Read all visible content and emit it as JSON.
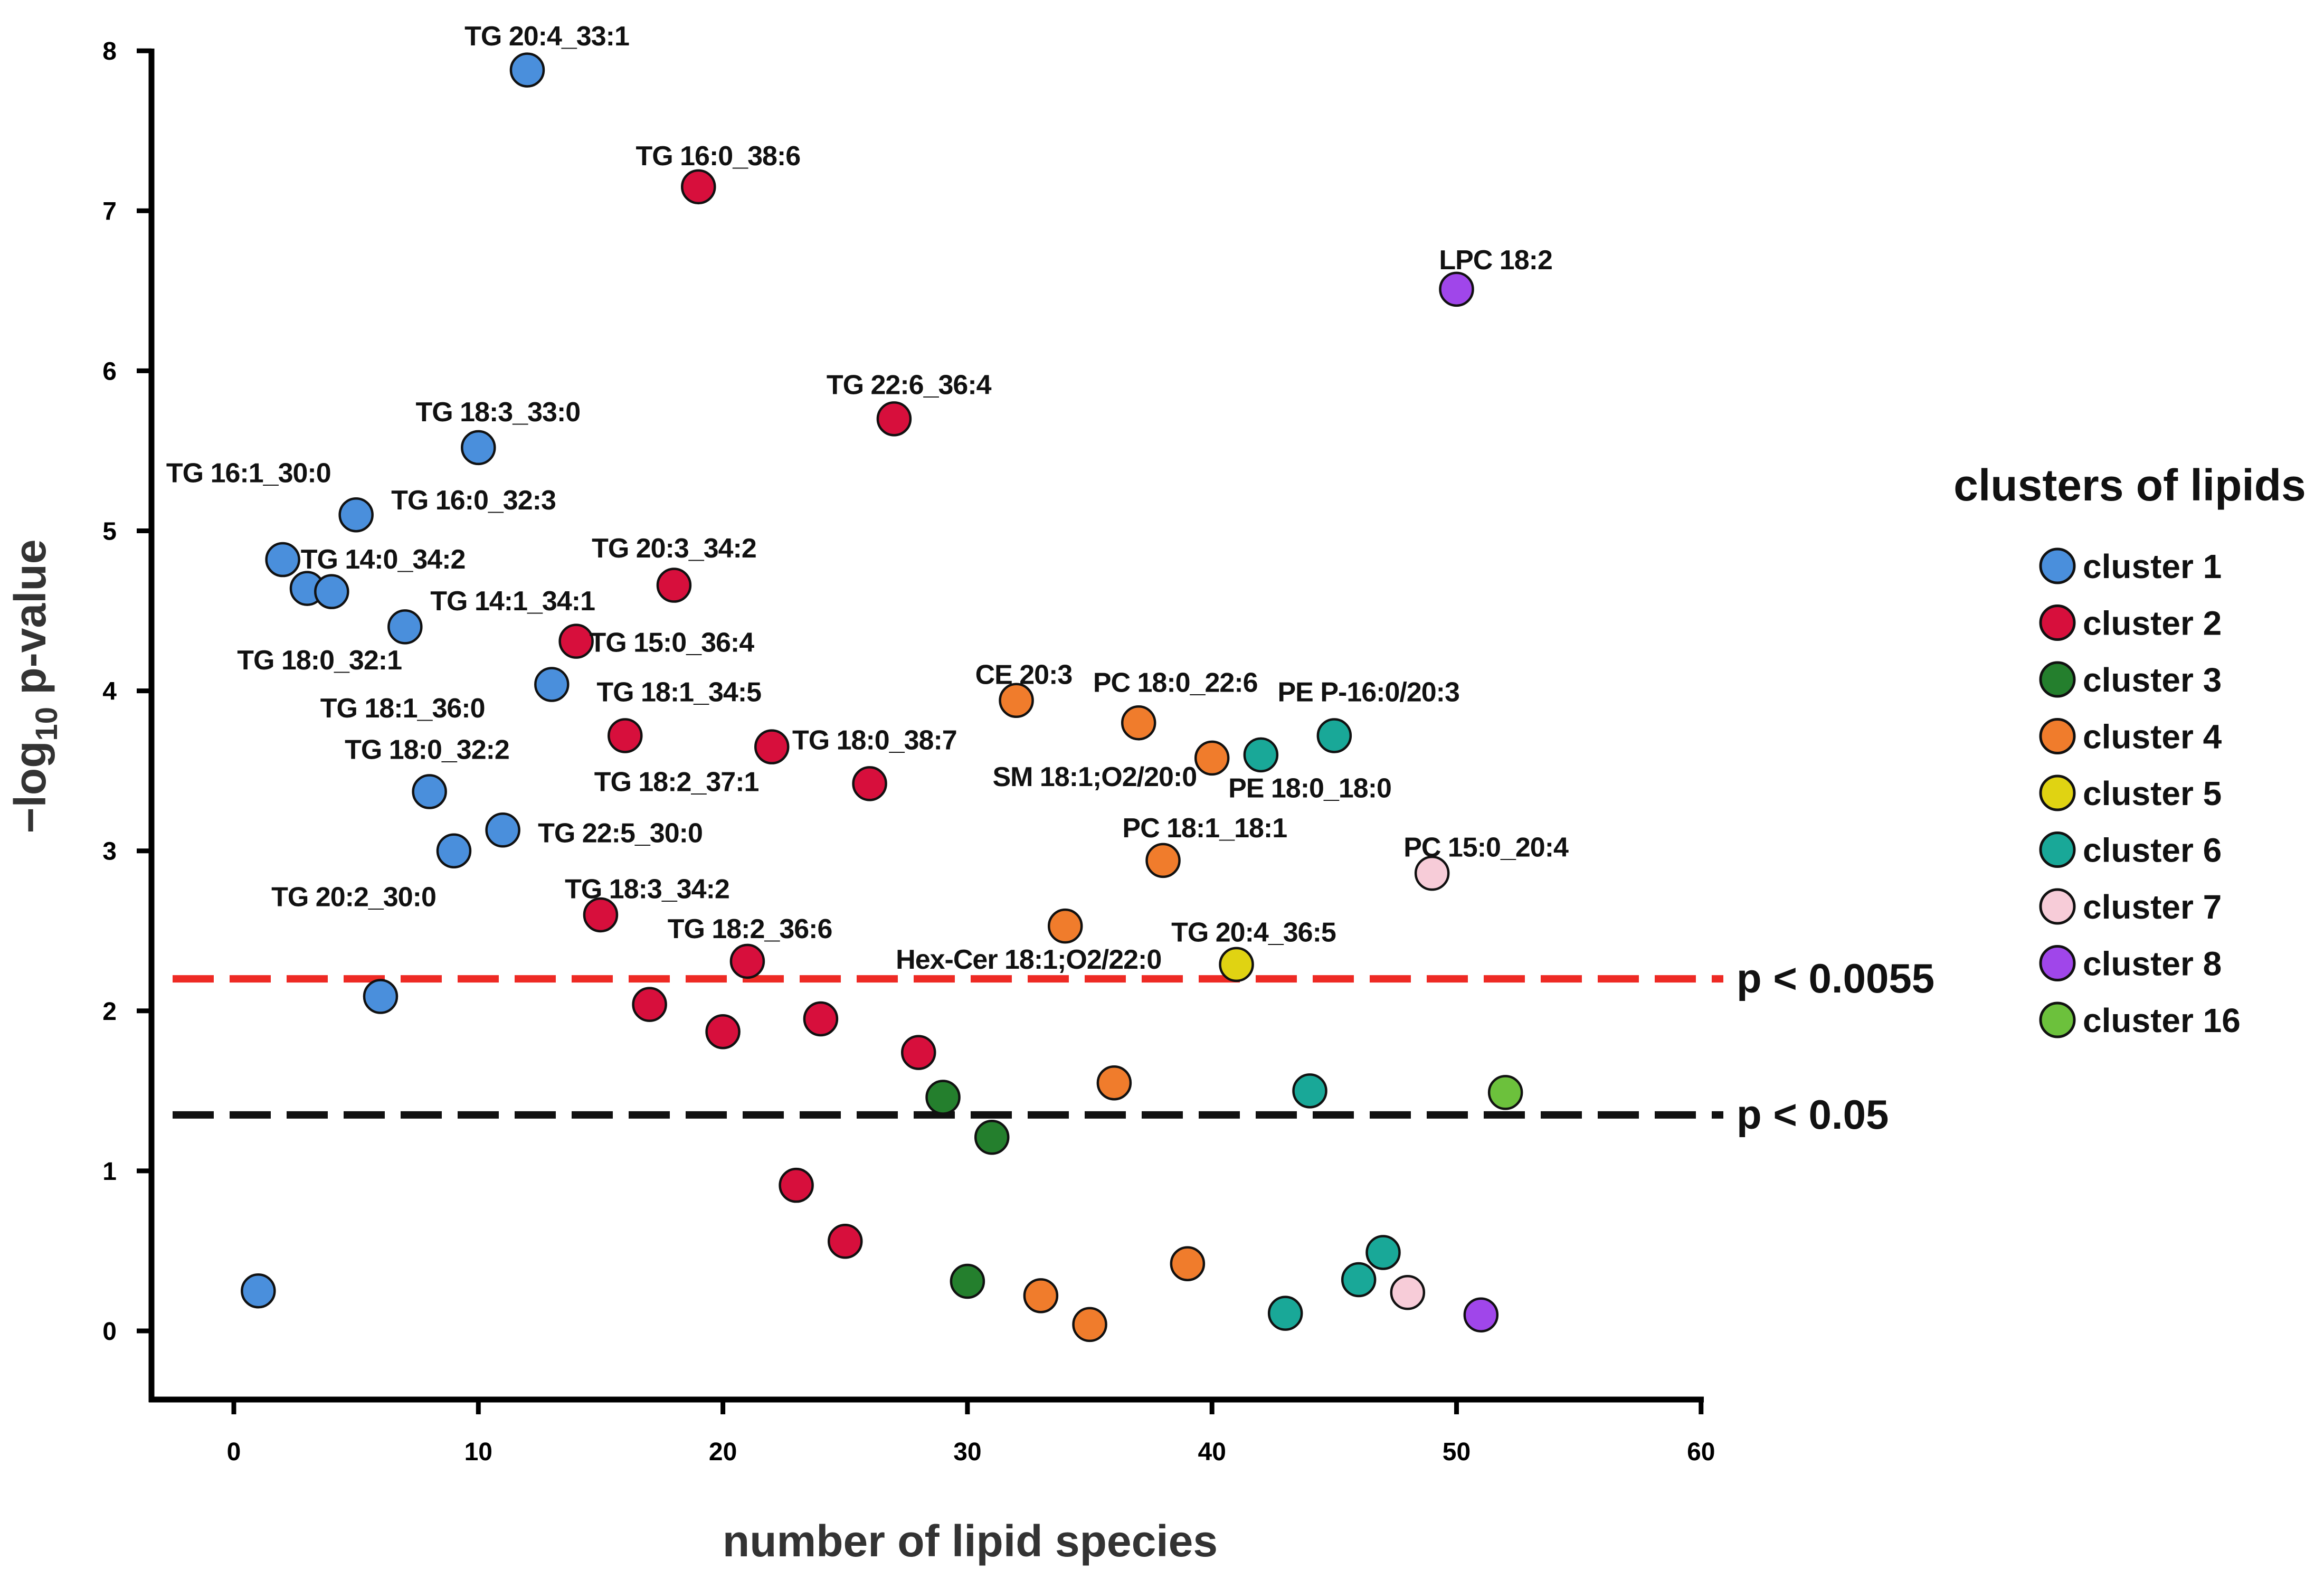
{
  "chart_data": {
    "type": "scatter",
    "title": "",
    "xlabel": "number of lipid species",
    "ylabel_prefix": "−log",
    "ylabel_sub": "10",
    "ylabel_suffix": " p-value",
    "xlim": [
      -3,
      60
    ],
    "ylim": [
      -0.4,
      8.1
    ],
    "xticks": [
      0,
      10,
      20,
      30,
      40,
      50,
      60
    ],
    "yticks": [
      0,
      1,
      2,
      3,
      4,
      5,
      6,
      7,
      8
    ],
    "grid": false,
    "legend": {
      "title": "clusters of lipids",
      "position": "right",
      "items": [
        {
          "label": "cluster 1",
          "color": "#4a8fdc"
        },
        {
          "label": "cluster 2",
          "color": "#d70f3c"
        },
        {
          "label": "cluster 3",
          "color": "#247f2d"
        },
        {
          "label": "cluster 4",
          "color": "#f07c2c"
        },
        {
          "label": "cluster 5",
          "color": "#e0d312"
        },
        {
          "label": "cluster 6",
          "color": "#19a898"
        },
        {
          "label": "cluster 7",
          "color": "#f7ccd8"
        },
        {
          "label": "cluster 8",
          "color": "#a046ea"
        },
        {
          "label": "cluster 16",
          "color": "#6cc13c"
        }
      ]
    },
    "thresholds": [
      {
        "y": 2.2,
        "label": "p < 0.0055",
        "color": "#ee2a24"
      },
      {
        "y": 1.35,
        "label": "p < 0.05",
        "color": "#111111"
      }
    ],
    "points": [
      {
        "x": 1,
        "y": 0.25,
        "c": 0
      },
      {
        "x": 2,
        "y": 4.82,
        "c": 0
      },
      {
        "x": 3,
        "y": 4.64,
        "c": 0
      },
      {
        "x": 4,
        "y": 4.62,
        "c": 0
      },
      {
        "x": 5,
        "y": 5.1,
        "c": 0
      },
      {
        "x": 6,
        "y": 2.09,
        "c": 0
      },
      {
        "x": 7,
        "y": 4.4,
        "c": 0
      },
      {
        "x": 8,
        "y": 3.37,
        "c": 0
      },
      {
        "x": 9,
        "y": 3.0,
        "c": 0
      },
      {
        "x": 10,
        "y": 5.52,
        "c": 0
      },
      {
        "x": 11,
        "y": 3.13,
        "c": 0
      },
      {
        "x": 12,
        "y": 7.88,
        "c": 0
      },
      {
        "x": 13,
        "y": 4.04,
        "c": 0
      },
      {
        "x": 14,
        "y": 4.31,
        "c": 1
      },
      {
        "x": 15,
        "y": 2.6,
        "c": 1
      },
      {
        "x": 16,
        "y": 3.72,
        "c": 1
      },
      {
        "x": 17,
        "y": 2.04,
        "c": 1
      },
      {
        "x": 18,
        "y": 4.66,
        "c": 1
      },
      {
        "x": 19,
        "y": 7.15,
        "c": 1
      },
      {
        "x": 20,
        "y": 1.87,
        "c": 1
      },
      {
        "x": 21,
        "y": 2.31,
        "c": 1
      },
      {
        "x": 22,
        "y": 3.65,
        "c": 1
      },
      {
        "x": 23,
        "y": 0.91,
        "c": 1
      },
      {
        "x": 24,
        "y": 1.95,
        "c": 1
      },
      {
        "x": 25,
        "y": 0.56,
        "c": 1
      },
      {
        "x": 26,
        "y": 3.42,
        "c": 1
      },
      {
        "x": 27,
        "y": 5.7,
        "c": 1
      },
      {
        "x": 28,
        "y": 1.74,
        "c": 1
      },
      {
        "x": 29,
        "y": 1.46,
        "c": 2
      },
      {
        "x": 30,
        "y": 0.31,
        "c": 2
      },
      {
        "x": 31,
        "y": 1.21,
        "c": 2
      },
      {
        "x": 32,
        "y": 3.94,
        "c": 3
      },
      {
        "x": 33,
        "y": 0.22,
        "c": 3
      },
      {
        "x": 34,
        "y": 2.53,
        "c": 3
      },
      {
        "x": 35,
        "y": 0.04,
        "c": 3
      },
      {
        "x": 36,
        "y": 1.55,
        "c": 3
      },
      {
        "x": 37,
        "y": 3.8,
        "c": 3
      },
      {
        "x": 38,
        "y": 2.94,
        "c": 3
      },
      {
        "x": 39,
        "y": 0.42,
        "c": 3
      },
      {
        "x": 40,
        "y": 3.58,
        "c": 3
      },
      {
        "x": 41,
        "y": 2.29,
        "c": 4
      },
      {
        "x": 42,
        "y": 3.6,
        "c": 5
      },
      {
        "x": 43,
        "y": 0.11,
        "c": 5
      },
      {
        "x": 44,
        "y": 1.5,
        "c": 5
      },
      {
        "x": 45,
        "y": 3.72,
        "c": 5
      },
      {
        "x": 46,
        "y": 0.32,
        "c": 5
      },
      {
        "x": 47,
        "y": 0.49,
        "c": 5
      },
      {
        "x": 48,
        "y": 0.24,
        "c": 6
      },
      {
        "x": 49,
        "y": 2.86,
        "c": 6
      },
      {
        "x": 50,
        "y": 6.51,
        "c": 7
      },
      {
        "x": 51,
        "y": 0.1,
        "c": 7
      },
      {
        "x": 52,
        "y": 1.49,
        "c": 8
      }
    ],
    "annotations": [
      {
        "text": "TG 20:4_33:1",
        "x": 12.8,
        "y": 8.1
      },
      {
        "text": "TG 16:0_38:6",
        "x": 19.8,
        "y": 7.35
      },
      {
        "text": "LPC 18:2",
        "x": 51.6,
        "y": 6.7
      },
      {
        "text": "TG 22:6_36:4",
        "x": 27.6,
        "y": 5.92
      },
      {
        "text": "TG 18:3_33:0",
        "x": 10.8,
        "y": 5.75
      },
      {
        "text": "TG 16:1_30:0",
        "x": 0.6,
        "y": 5.37
      },
      {
        "text": "TG 16:0_32:3",
        "x": 9.8,
        "y": 5.2
      },
      {
        "text": "TG 20:3_34:2",
        "x": 18.0,
        "y": 4.9
      },
      {
        "text": "TG 14:0_34:2",
        "x": 6.1,
        "y": 4.83
      },
      {
        "text": "TG 14:1_34:1",
        "x": 11.4,
        "y": 4.57
      },
      {
        "text": "TG 15:0_36:4",
        "x": 17.9,
        "y": 4.31
      },
      {
        "text": "TG 18:0_32:1",
        "x": 3.5,
        "y": 4.2
      },
      {
        "text": "CE 20:3",
        "x": 32.3,
        "y": 4.11
      },
      {
        "text": "PC 18:0_22:6",
        "x": 38.5,
        "y": 4.06
      },
      {
        "text": "TG 18:1_34:5",
        "x": 18.2,
        "y": 4.0
      },
      {
        "text": "PE P-16:0/20:3",
        "x": 46.4,
        "y": 4.0
      },
      {
        "text": "TG 18:1_36:0",
        "x": 6.9,
        "y": 3.9
      },
      {
        "text": "TG 18:0_38:7",
        "x": 26.2,
        "y": 3.7
      },
      {
        "text": "TG 18:0_32:2",
        "x": 7.9,
        "y": 3.64
      },
      {
        "text": "SM 18:1;O2/20:0",
        "x": 35.2,
        "y": 3.47
      },
      {
        "text": "TG 18:2_37:1",
        "x": 18.1,
        "y": 3.44
      },
      {
        "text": "PE 18:0_18:0",
        "x": 44.0,
        "y": 3.4
      },
      {
        "text": "TG 22:5_30:0",
        "x": 15.8,
        "y": 3.12
      },
      {
        "text": "PC 18:1_18:1",
        "x": 39.7,
        "y": 3.15
      },
      {
        "text": "PC 15:0_20:4",
        "x": 51.2,
        "y": 3.03
      },
      {
        "text": "TG 18:3_34:2",
        "x": 16.9,
        "y": 2.77
      },
      {
        "text": "TG 20:2_30:0",
        "x": 4.9,
        "y": 2.72
      },
      {
        "text": "TG 18:2_36:6",
        "x": 21.1,
        "y": 2.52
      },
      {
        "text": "TG 20:4_36:5",
        "x": 41.7,
        "y": 2.5
      },
      {
        "text": "Hex-Cer 18:1;O2/22:0",
        "x": 32.5,
        "y": 2.33
      }
    ]
  }
}
